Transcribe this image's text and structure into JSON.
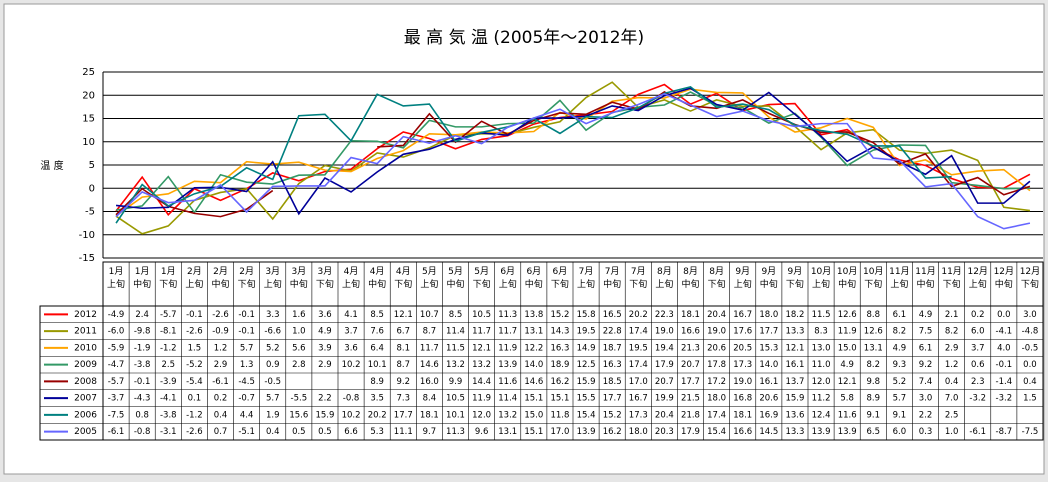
{
  "chart_data": {
    "type": "line",
    "title": "最 高 気 温 (2005年～2012年)",
    "y_label": "温 度",
    "categories": [
      "1月上旬",
      "1月中旬",
      "1月下旬",
      "2月上旬",
      "2月中旬",
      "2月下旬",
      "3月上旬",
      "3月中旬",
      "3月下旬",
      "4月上旬",
      "4月中旬",
      "4月下旬",
      "5月上旬",
      "5月中旬",
      "5月下旬",
      "6月上旬",
      "6月中旬",
      "6月下旬",
      "7月上旬",
      "7月中旬",
      "7月下旬",
      "8月上旬",
      "8月中旬",
      "8月下旬",
      "9月上旬",
      "9月中旬",
      "9月下旬",
      "10月上旬",
      "10月中旬",
      "10月下旬",
      "11月上旬",
      "11月中旬",
      "11月下旬",
      "12月上旬",
      "12月中旬",
      "12月下旬"
    ],
    "ylim": [
      -15,
      25
    ],
    "yticks": [
      -15,
      -10,
      -5,
      0,
      5,
      10,
      15,
      20,
      25
    ],
    "grid": true,
    "series": [
      {
        "name": "2012",
        "color": "#ff0000",
        "values": [
          -4.9,
          2.4,
          -5.7,
          -0.1,
          -2.6,
          -0.1,
          3.3,
          1.6,
          3.6,
          4.1,
          8.5,
          12.1,
          10.7,
          8.5,
          10.5,
          11.3,
          13.8,
          15.2,
          15.8,
          16.5,
          20.2,
          22.3,
          18.1,
          20.4,
          16.7,
          18.0,
          18.2,
          11.5,
          12.6,
          8.8,
          6.1,
          4.9,
          2.1,
          0.2,
          0.0,
          3.0
        ],
        "value_labels": [
          "-4.9",
          "2.4",
          "-5.7",
          "-0.1",
          "-2.6",
          "-0.1",
          "3.3",
          "1.6",
          "3.6",
          "4.1",
          "8.5",
          "12.1",
          "10.7",
          "8.5",
          "10.5",
          "11.3",
          "13.8",
          "15.2",
          "15.8",
          "16.5",
          "20.2",
          "22.3",
          "18.1",
          "20.4",
          "16.7",
          "18.0",
          "18.2",
          "11.5",
          "12.6",
          "8.8",
          "6.1",
          "4.9",
          "2.1",
          "0.2",
          "0.0",
          "3.0"
        ]
      },
      {
        "name": "2011",
        "color": "#999900",
        "values": [
          -6.0,
          -9.8,
          -8.1,
          -2.6,
          -0.9,
          -0.1,
          -6.6,
          1.0,
          4.9,
          3.7,
          7.6,
          6.7,
          8.7,
          11.4,
          11.7,
          11.7,
          13.1,
          14.3,
          19.5,
          22.8,
          17.4,
          19.0,
          16.6,
          19.0,
          17.6,
          17.7,
          13.3,
          8.3,
          11.9,
          12.6,
          8.2,
          7.5,
          8.2,
          6.0,
          -4.1,
          -4.8
        ],
        "value_labels": [
          "-6.0",
          "-9.8",
          "-8.1",
          "-2.6",
          "-0.9",
          "-0.1",
          "-6.6",
          "1.0",
          "4.9",
          "3.7",
          "7.6",
          "6.7",
          "8.7",
          "11.4",
          "11.7",
          "11.7",
          "13.1",
          "14.3",
          "19.5",
          "22.8",
          "17.4",
          "19.0",
          "16.6",
          "19.0",
          "17.6",
          "17.7",
          "13.3",
          "8.3",
          "11.9",
          "12.6",
          "8.2",
          "7.5",
          "8.2",
          "6.0",
          "-4.1",
          "-4.8"
        ]
      },
      {
        "name": "2010",
        "color": "#ffa500",
        "values": [
          -5.9,
          -1.9,
          -1.2,
          1.5,
          1.2,
          5.7,
          5.2,
          5.6,
          3.9,
          3.6,
          6.4,
          8.1,
          11.7,
          11.5,
          12.1,
          11.9,
          12.2,
          16.3,
          14.9,
          18.7,
          19.5,
          19.4,
          21.3,
          20.6,
          20.5,
          15.3,
          12.1,
          13.0,
          15.0,
          13.1,
          4.9,
          6.1,
          2.9,
          3.7,
          4.0,
          -0.5
        ],
        "value_labels": [
          "-5.9",
          "-1.9",
          "-1.2",
          "1.5",
          "1.2",
          "5.7",
          "5.2",
          "5.6",
          "3.9",
          "3.6",
          "6.4",
          "8.1",
          "11.7",
          "11.5",
          "12.1",
          "11.9",
          "12.2",
          "16.3",
          "14.9",
          "18.7",
          "19.5",
          "19.4",
          "21.3",
          "20.6",
          "20.5",
          "15.3",
          "12.1",
          "13.0",
          "15.0",
          "13.1",
          "4.9",
          "6.1",
          "2.9",
          "3.7",
          "4.0",
          "-0.5"
        ]
      },
      {
        "name": "2009",
        "color": "#339966",
        "values": [
          -4.7,
          -3.8,
          2.5,
          -5.2,
          2.9,
          1.3,
          0.9,
          2.8,
          2.9,
          10.2,
          10.1,
          8.7,
          14.6,
          13.2,
          13.2,
          13.9,
          14.0,
          18.9,
          12.5,
          16.3,
          17.4,
          17.9,
          20.7,
          17.8,
          17.3,
          14.0,
          16.1,
          11.0,
          4.9,
          8.2,
          9.3,
          9.2,
          1.2,
          0.6,
          -0.1,
          0.0
        ],
        "value_labels": [
          "-4.7",
          "-3.8",
          "2.5",
          "-5.2",
          "2.9",
          "1.3",
          "0.9",
          "2.8",
          "2.9",
          "10.2",
          "10.1",
          "8.7",
          "14.6",
          "13.2",
          "13.2",
          "13.9",
          "14.0",
          "18.9",
          "12.5",
          "16.3",
          "17.4",
          "17.9",
          "20.7",
          "17.8",
          "17.3",
          "14.0",
          "16.1",
          "11.0",
          "4.9",
          "8.2",
          "9.3",
          "9.2",
          "1.2",
          "0.6",
          "-0.1",
          "0.0"
        ]
      },
      {
        "name": "2008",
        "color": "#990000",
        "values": [
          -5.7,
          -0.1,
          -3.9,
          -5.4,
          -6.1,
          -4.5,
          -0.5,
          null,
          null,
          null,
          8.9,
          9.2,
          16.0,
          9.9,
          14.4,
          11.6,
          14.6,
          16.2,
          15.9,
          18.5,
          17.0,
          20.7,
          17.7,
          17.2,
          19.0,
          16.1,
          13.7,
          12.0,
          12.1,
          9.8,
          5.2,
          7.4,
          0.4,
          2.3,
          -1.4,
          0.4
        ],
        "value_labels": [
          "-5.7",
          "-0.1",
          "-3.9",
          "-5.4",
          "-6.1",
          "-4.5",
          "-0.5",
          null,
          null,
          null,
          "8.9",
          "9.2",
          "16.0",
          "9.9",
          "14.4",
          "11.6",
          "14.6",
          "16.2",
          "15.9",
          "18.5",
          "17.0",
          "20.7",
          "17.7",
          "17.2",
          "19.0",
          "16.1",
          "13.7",
          "12.0",
          "12.1",
          "9.8",
          "5.2",
          "7.4",
          "0.4",
          "2.3",
          "-1.4",
          "0.4"
        ]
      },
      {
        "name": "2007",
        "color": "#000099",
        "values": [
          -3.7,
          -4.3,
          -4.1,
          0.1,
          0.2,
          -0.7,
          5.7,
          -5.5,
          2.2,
          -0.8,
          3.5,
          7.3,
          8.4,
          10.5,
          11.9,
          11.4,
          15.1,
          15.1,
          15.5,
          17.7,
          16.7,
          19.9,
          21.5,
          18.0,
          16.8,
          20.6,
          15.9,
          11.2,
          5.8,
          8.9,
          5.7,
          3.0,
          7.0,
          -3.2,
          -3.2,
          1.5
        ],
        "value_labels": [
          "-3.7",
          "-4.3",
          "-4.1",
          "0.1",
          "0.2",
          "-0.7",
          "5.7",
          "-5.5",
          "2.2",
          "-0.8",
          "3.5",
          "7.3",
          "8.4",
          "10.5",
          "11.9",
          "11.4",
          "15.1",
          "15.1",
          "15.5",
          "17.7",
          "16.7",
          "19.9",
          "21.5",
          "18.0",
          "16.8",
          "20.6",
          "15.9",
          "11.2",
          "5.8",
          "8.9",
          "5.7",
          "3.0",
          "7.0",
          "-3.2",
          "-3.2",
          "1.5"
        ]
      },
      {
        "name": "2006",
        "color": "#008080",
        "values": [
          -7.5,
          0.8,
          -3.8,
          -1.2,
          0.4,
          4.4,
          1.9,
          15.6,
          15.9,
          10.2,
          20.2,
          17.7,
          18.1,
          10.1,
          12.0,
          13.2,
          15.0,
          11.8,
          15.4,
          15.2,
          17.3,
          20.4,
          21.8,
          17.4,
          18.1,
          16.9,
          13.6,
          12.4,
          11.6,
          9.1,
          9.1,
          2.2,
          2.5,
          null,
          null,
          null
        ],
        "value_labels": [
          "-7.5",
          "0.8",
          "-3.8",
          "-1.2",
          "0.4",
          "4.4",
          "1.9",
          "15.6",
          "15.9",
          "10.2",
          "20.2",
          "17.7",
          "18.1",
          "10.1",
          "12.0",
          "13.2",
          "15.0",
          "11.8",
          "15.4",
          "15.2",
          "17.3",
          "20.4",
          "21.8",
          "17.4",
          "18.1",
          "16.9",
          "13.6",
          "12.4",
          "11.6",
          "9.1",
          "9.1",
          "2.2",
          "2.5",
          null,
          null,
          null
        ]
      },
      {
        "name": "2005",
        "color": "#6666ff",
        "values": [
          -6.1,
          -0.8,
          -3.1,
          -2.6,
          0.7,
          -5.1,
          0.4,
          0.5,
          0.5,
          6.6,
          5.3,
          11.1,
          9.7,
          11.3,
          9.6,
          13.1,
          15.1,
          17.0,
          13.9,
          16.2,
          18.0,
          20.3,
          17.9,
          15.4,
          16.6,
          14.5,
          13.3,
          13.9,
          13.9,
          6.5,
          6.0,
          0.3,
          1.0,
          -6.1,
          -8.7,
          -7.5
        ],
        "value_labels": [
          "-6.1",
          "-0.8",
          "-3.1",
          "-2.6",
          "0.7",
          "-5.1",
          "0.4",
          "0.5",
          "0.5",
          "6.6",
          "5.3",
          "11.1",
          "9.7",
          "11.3",
          "9.6",
          "13.1",
          "15.1",
          "17.0",
          "13.9",
          "16.2",
          "18.0",
          "20.3",
          "17.9",
          "15.4",
          "16.6",
          "14.5",
          "13.3",
          "13.9",
          "13.9",
          "6.5",
          "6.0",
          "0.3",
          "1.0",
          "-6.1",
          "-8.7",
          "-7.5"
        ]
      }
    ]
  }
}
